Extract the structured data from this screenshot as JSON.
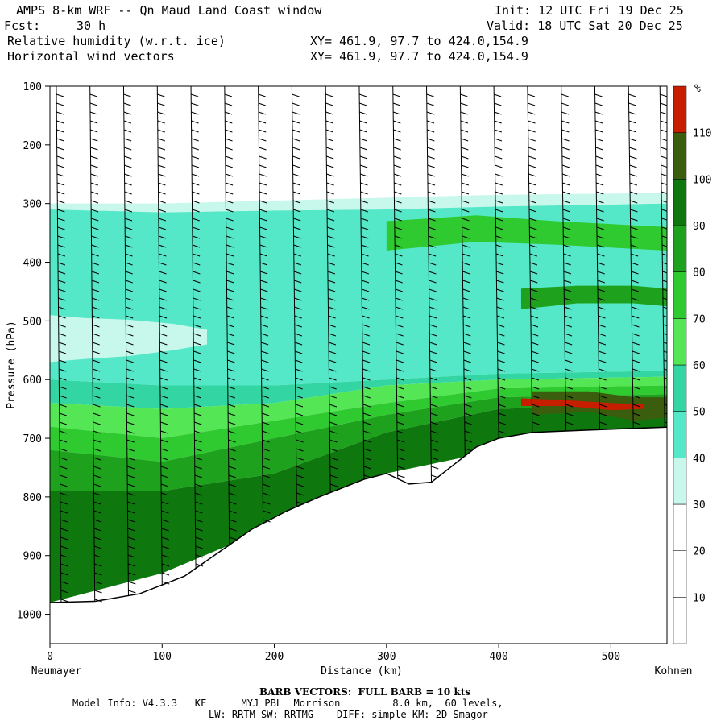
{
  "header": {
    "title": "AMPS 8-km WRF -- Qn Maud Land Coast window",
    "init": "Init: 12 UTC Fri 19 Dec 25",
    "fcst_label": "Fcst:",
    "fcst_value": "30 h",
    "valid": "Valid: 18 UTC Sat 20 Dec 25",
    "field1": "Relative humidity (w.r.t. ice)",
    "field2": "Horizontal wind vectors",
    "xy1": "XY= 461.9, 97.7 to 424.0,154.9",
    "xy2": "XY= 461.9, 97.7 to 424.0,154.9"
  },
  "footer": {
    "barb_note": "BARB VECTORS:  FULL BARB = 10 kts",
    "model_info_1": "Model Info: V4.3.3   KF      MYJ PBL  Morrison         8.0 km,  60 levels,",
    "model_info_2": "LW: RRTM SW: RRTMG    DIFF: simple KM: 2D Smagor"
  },
  "colors": {
    "bands": [
      "#ffffff",
      "#ffffff",
      "#ffffff",
      "#c8f8ec",
      "#55e8c8",
      "#33d6a2",
      "#55e655",
      "#2fca2f",
      "#1ea21e",
      "#0e780e",
      "#3a5d0e",
      "#c81e00"
    ],
    "terrain": "#ffffff",
    "barb": "#000000"
  },
  "chart_data": {
    "type": "heatmap",
    "title": "Relative humidity (w.r.t. ice)",
    "xlabel": "Distance (km)",
    "ylabel": "Pressure (hPa)",
    "xlim": [
      0,
      550
    ],
    "ylim": [
      1050,
      100
    ],
    "x_ticks": [
      0,
      100,
      200,
      300,
      400,
      500
    ],
    "y_ticks": [
      100,
      200,
      300,
      400,
      500,
      600,
      700,
      800,
      900,
      1000
    ],
    "x_start_label": "Neumayer",
    "x_end_label": "Kohnen",
    "colorbar": {
      "unit": "%",
      "levels": [
        10,
        20,
        30,
        40,
        50,
        60,
        70,
        80,
        90,
        100,
        110
      ]
    },
    "moist_top_hPa": 280,
    "terrain_surface": {
      "x": [
        0,
        40,
        80,
        120,
        150,
        180,
        210,
        240,
        280,
        300,
        320,
        340,
        360,
        380,
        400,
        430,
        480,
        550
      ],
      "p_hPa": [
        980,
        978,
        965,
        935,
        895,
        855,
        825,
        800,
        770,
        760,
        778,
        775,
        745,
        715,
        700,
        690,
        686,
        681
      ]
    },
    "humidity_layers": [
      {
        "band": 3,
        "x": [
          0,
          100,
          200,
          300,
          400,
          550
        ],
        "p_top": [
          300,
          300,
          295,
          290,
          285,
          282
        ],
        "p_bottom": [
          310,
          315,
          312,
          310,
          305,
          300
        ]
      },
      {
        "band": 4,
        "x": [
          0,
          100,
          200,
          300,
          400,
          550
        ],
        "p_top": [
          310,
          315,
          312,
          310,
          305,
          300
        ],
        "p_bottom": [
          600,
          610,
          610,
          600,
          590,
          585
        ]
      },
      {
        "band": 3,
        "x": [
          0,
          30,
          70,
          110,
          140
        ],
        "p_top": [
          490,
          495,
          498,
          505,
          515
        ],
        "p_bottom": [
          570,
          565,
          560,
          550,
          540
        ]
      },
      {
        "band": 5,
        "x": [
          0,
          100,
          200,
          300,
          400,
          550
        ],
        "p_top": [
          600,
          610,
          610,
          600,
          590,
          585
        ],
        "p_bottom": [
          640,
          650,
          640,
          610,
          600,
          595
        ]
      },
      {
        "band": 6,
        "x": [
          0,
          100,
          200,
          300,
          400,
          550
        ],
        "p_top": [
          640,
          650,
          640,
          610,
          600,
          595
        ],
        "p_bottom": [
          680,
          700,
          670,
          640,
          615,
          610
        ]
      },
      {
        "band": 7,
        "x": [
          0,
          100,
          200,
          300,
          400,
          550
        ],
        "p_top": [
          680,
          700,
          670,
          640,
          615,
          610
        ],
        "p_bottom": [
          720,
          740,
          700,
          660,
          630,
          625
        ]
      },
      {
        "band": 8,
        "x": [
          0,
          100,
          200,
          300,
          400,
          550
        ],
        "p_top": [
          720,
          740,
          700,
          660,
          630,
          625
        ],
        "p_bottom": [
          790,
          790,
          760,
          690,
          650,
          640
        ]
      },
      {
        "band": 9,
        "x": [
          0,
          100,
          200,
          300,
          400,
          550
        ],
        "p_top": [
          790,
          790,
          760,
          690,
          650,
          640
        ],
        "p_bottom": [
          980,
          930,
          850,
          760,
          720,
          700
        ]
      },
      {
        "band": 7,
        "x": [
          300,
          380,
          450,
          550
        ],
        "p_top": [
          330,
          320,
          330,
          340
        ],
        "p_bottom": [
          380,
          365,
          370,
          380
        ]
      },
      {
        "band": 8,
        "x": [
          420,
          470,
          520,
          550
        ],
        "p_top": [
          445,
          440,
          440,
          445
        ],
        "p_bottom": [
          480,
          470,
          470,
          475
        ]
      },
      {
        "band": 10,
        "x": [
          430,
          480,
          520,
          550
        ],
        "p_top": [
          620,
          620,
          630,
          630
        ],
        "p_bottom": [
          660,
          655,
          670,
          665
        ]
      },
      {
        "band": 11,
        "x": [
          420,
          460,
          500,
          530
        ],
        "p_top": [
          632,
          635,
          640,
          642
        ],
        "p_bottom": [
          645,
          645,
          652,
          650
        ]
      }
    ],
    "wind_barb_columns_km": [
      10,
      40,
      70,
      100,
      130,
      160,
      190,
      220,
      250,
      280,
      310,
      340,
      370,
      400,
      430,
      460,
      490,
      520,
      548
    ]
  }
}
